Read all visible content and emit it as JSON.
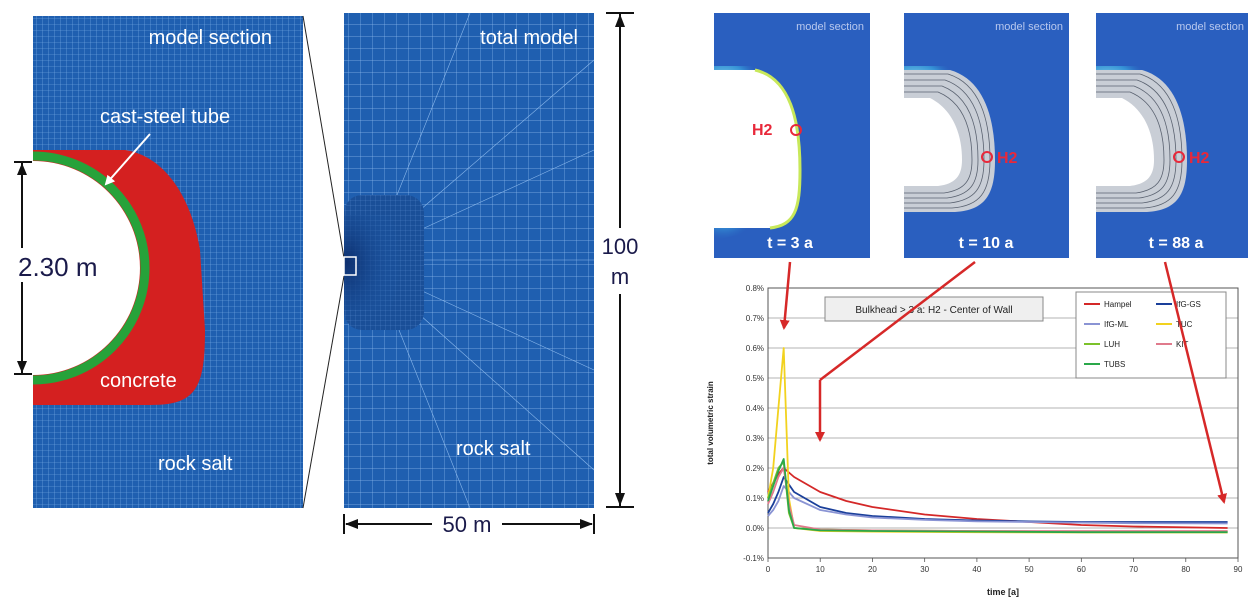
{
  "left_panel": {
    "section_title": "model section",
    "tube_label": "cast-steel tube",
    "diameter_label": "2.30 m",
    "concrete_label": "concrete",
    "rock_label": "rock salt"
  },
  "middle_panel": {
    "title": "total model",
    "rock_label": "rock salt",
    "height_value": "100",
    "height_unit": "m",
    "width_label": "50 m"
  },
  "snapshots": [
    {
      "title": "model section",
      "time_label": "t = 3 a",
      "point_label": "H2"
    },
    {
      "title": "model section",
      "time_label": "t = 10 a",
      "point_label": "H2"
    },
    {
      "title": "model section",
      "time_label": "t = 88 a",
      "point_label": "H2"
    }
  ],
  "colors": {
    "mesh_blue": "#1f5fb0",
    "concrete_red": "#d42020",
    "steel_green": "#27a23a",
    "arrow_red": "#d62828"
  },
  "chart_data": {
    "type": "line",
    "annotation": "Bulkhead > 3 a:  H2 - Center of Wall",
    "xlabel": "time [a]",
    "ylabel": "total volumetric strain",
    "xlim": [
      0,
      90
    ],
    "ylim": [
      -0.1,
      0.8
    ],
    "x_ticks": [
      "0",
      "10",
      "20",
      "30",
      "40",
      "50",
      "60",
      "70",
      "80",
      "90"
    ],
    "y_ticks": [
      "-0.1%",
      "0.0%",
      "0.1%",
      "0.2%",
      "0.3%",
      "0.4%",
      "0.5%",
      "0.6%",
      "0.7%",
      "0.8%"
    ],
    "grid": true,
    "legend_position": "top-right",
    "series": [
      {
        "name": "Hampel",
        "color": "#d42828",
        "x": [
          0,
          1,
          2,
          3,
          5,
          10,
          15,
          20,
          30,
          40,
          50,
          60,
          70,
          88
        ],
        "y": [
          0.12,
          0.15,
          0.18,
          0.2,
          0.17,
          0.12,
          0.09,
          0.07,
          0.045,
          0.03,
          0.02,
          0.01,
          0.005,
          0.0
        ]
      },
      {
        "name": "IfG-GS",
        "color": "#1a3f9a",
        "x": [
          0,
          1,
          2,
          3,
          5,
          10,
          15,
          20,
          30,
          40,
          50,
          60,
          70,
          88
        ],
        "y": [
          0.05,
          0.08,
          0.12,
          0.17,
          0.12,
          0.07,
          0.05,
          0.04,
          0.03,
          0.025,
          0.022,
          0.02,
          0.02,
          0.02
        ]
      },
      {
        "name": "IfG-ML",
        "color": "#8a94d4",
        "x": [
          0,
          1,
          2,
          3,
          5,
          10,
          15,
          20,
          30,
          40,
          50,
          60,
          70,
          88
        ],
        "y": [
          0.04,
          0.06,
          0.09,
          0.14,
          0.1,
          0.06,
          0.045,
          0.035,
          0.027,
          0.022,
          0.02,
          0.018,
          0.016,
          0.015
        ]
      },
      {
        "name": "TUC",
        "color": "#f2d21e",
        "x": [
          0,
          1,
          2,
          3,
          4,
          5,
          10,
          20,
          40,
          60,
          88
        ],
        "y": [
          0.1,
          0.2,
          0.4,
          0.6,
          0.1,
          0.0,
          -0.01,
          -0.012,
          -0.014,
          -0.015,
          -0.015
        ]
      },
      {
        "name": "LUH",
        "color": "#7cc22a",
        "x": [
          0,
          1,
          2,
          3,
          4,
          5,
          10,
          20,
          40,
          60,
          88
        ],
        "y": [
          0.1,
          0.15,
          0.2,
          0.22,
          0.05,
          0.0,
          -0.005,
          -0.008,
          -0.01,
          -0.012,
          -0.012
        ]
      },
      {
        "name": "KIT",
        "color": "#e07a8c",
        "x": [
          0,
          1,
          2,
          3,
          4,
          5,
          10,
          20,
          40,
          60,
          88
        ],
        "y": [
          0.08,
          0.12,
          0.17,
          0.2,
          0.08,
          0.01,
          -0.005,
          -0.008,
          -0.01,
          -0.01,
          -0.01
        ]
      },
      {
        "name": "TUBS",
        "color": "#2aa84a",
        "x": [
          0,
          1,
          2,
          3,
          4,
          5,
          10,
          20,
          40,
          60,
          88
        ],
        "y": [
          0.09,
          0.14,
          0.19,
          0.23,
          0.06,
          0.0,
          -0.008,
          -0.01,
          -0.012,
          -0.014,
          -0.014
        ]
      }
    ]
  }
}
